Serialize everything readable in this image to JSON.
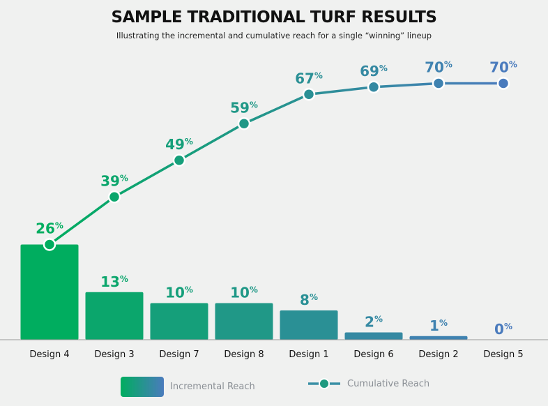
{
  "chart_data": {
    "type": "bar",
    "title": "SAMPLE TRADITIONAL TURF RESULTS",
    "subtitle": "Illustrating the incremental and cumulative reach for a single “winning” lineup",
    "categories": [
      "Design 4",
      "Design 3",
      "Design 7",
      "Design 8",
      "Design 1",
      "Design 6",
      "Design 2",
      "Design 5"
    ],
    "series": [
      {
        "name": "Incremental Reach",
        "type": "bar",
        "values": [
          26,
          13,
          10,
          10,
          8,
          2,
          1,
          0
        ]
      },
      {
        "name": "Cumulative Reach",
        "type": "line",
        "values": [
          26,
          39,
          49,
          59,
          67,
          69,
          70,
          70
        ]
      }
    ],
    "value_suffix": "%",
    "ylim": [
      0,
      75
    ],
    "grid": false,
    "legend": "bottom",
    "colors": {
      "start": "#00ad5f",
      "end": "#4a7bbd"
    }
  }
}
